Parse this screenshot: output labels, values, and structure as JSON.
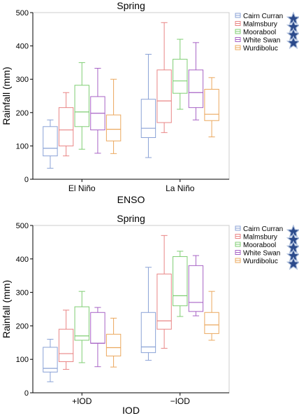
{
  "colors": {
    "Cairn Curran": "#8aa2d6",
    "Malmsbury": "#e98585",
    "Moorabool": "#7fce73",
    "White Swan": "#a763c5",
    "Wurdiboluc": "#eba85e",
    "star_fill": "#2b4a8b",
    "star_stroke": "#aebfdc",
    "axis": "#000000",
    "frame": "#cccccc"
  },
  "chart_data": [
    {
      "type": "box",
      "title": "Spring",
      "xlabel": "ENSO",
      "ylabel": "Rainfall (mm)",
      "ylim": [
        0,
        500
      ],
      "yticks": [
        0,
        100,
        200,
        300,
        400,
        500
      ],
      "categories": [
        "El Niño",
        "La Niño"
      ],
      "legend_position": "right",
      "series": [
        {
          "name": "Cairn Curran",
          "star": true,
          "boxes": [
            {
              "min": 33,
              "q1": 70,
              "median": 93,
              "q3": 158,
              "max": 178
            },
            {
              "min": 65,
              "q1": 125,
              "median": 153,
              "q3": 240,
              "max": 375
            }
          ]
        },
        {
          "name": "Malmsbury",
          "star": true,
          "boxes": [
            {
              "min": 70,
              "q1": 100,
              "median": 148,
              "q3": 215,
              "max": 260
            },
            {
              "min": 140,
              "q1": 170,
              "median": 235,
              "q3": 328,
              "max": 470
            }
          ]
        },
        {
          "name": "Moorabool",
          "star": true,
          "boxes": [
            {
              "min": 90,
              "q1": 158,
              "median": 202,
              "q3": 282,
              "max": 350
            },
            {
              "min": 210,
              "q1": 258,
              "median": 295,
              "q3": 360,
              "max": 420
            }
          ]
        },
        {
          "name": "White Swan",
          "star": true,
          "boxes": [
            {
              "min": 78,
              "q1": 148,
              "median": 198,
              "q3": 248,
              "max": 333
            },
            {
              "min": 178,
              "q1": 215,
              "median": 260,
              "q3": 328,
              "max": 410
            }
          ]
        },
        {
          "name": "Wurdiboluc",
          "star": false,
          "boxes": [
            {
              "min": 77,
              "q1": 115,
              "median": 150,
              "q3": 193,
              "max": 300
            },
            {
              "min": 127,
              "q1": 176,
              "median": 195,
              "q3": 270,
              "max": 305
            }
          ]
        }
      ]
    },
    {
      "type": "box",
      "title": "Spring",
      "xlabel": "IOD",
      "ylabel": "Rainfall (mm)",
      "ylim": [
        0,
        500
      ],
      "yticks": [
        0,
        100,
        200,
        300,
        400,
        500
      ],
      "categories": [
        "+IOD",
        "−IOD"
      ],
      "legend_position": "right",
      "series": [
        {
          "name": "Cairn Curran",
          "star": true,
          "boxes": [
            {
              "min": 33,
              "q1": 62,
              "median": 73,
              "q3": 136,
              "max": 160
            },
            {
              "min": 97,
              "q1": 120,
              "median": 137,
              "q3": 240,
              "max": 375
            }
          ]
        },
        {
          "name": "Malmsbury",
          "star": true,
          "boxes": [
            {
              "min": 70,
              "q1": 93,
              "median": 117,
              "q3": 190,
              "max": 247
            },
            {
              "min": 133,
              "q1": 190,
              "median": 215,
              "q3": 355,
              "max": 470
            }
          ]
        },
        {
          "name": "Moorabool",
          "star": true,
          "boxes": [
            {
              "min": 90,
              "q1": 157,
              "median": 170,
              "q3": 257,
              "max": 303
            },
            {
              "min": 228,
              "q1": 260,
              "median": 290,
              "q3": 407,
              "max": 423
            }
          ]
        },
        {
          "name": "White Swan",
          "star": true,
          "boxes": [
            {
              "min": 78,
              "q1": 148,
              "median": 148,
              "q3": 240,
              "max": 255
            },
            {
              "min": 230,
              "q1": 243,
              "median": 270,
              "q3": 380,
              "max": 410
            }
          ]
        },
        {
          "name": "Wurdiboluc",
          "star": true,
          "boxes": [
            {
              "min": 77,
              "q1": 110,
              "median": 135,
              "q3": 175,
              "max": 223
            },
            {
              "min": 157,
              "q1": 177,
              "median": 203,
              "q3": 240,
              "max": 303
            }
          ]
        }
      ]
    }
  ]
}
